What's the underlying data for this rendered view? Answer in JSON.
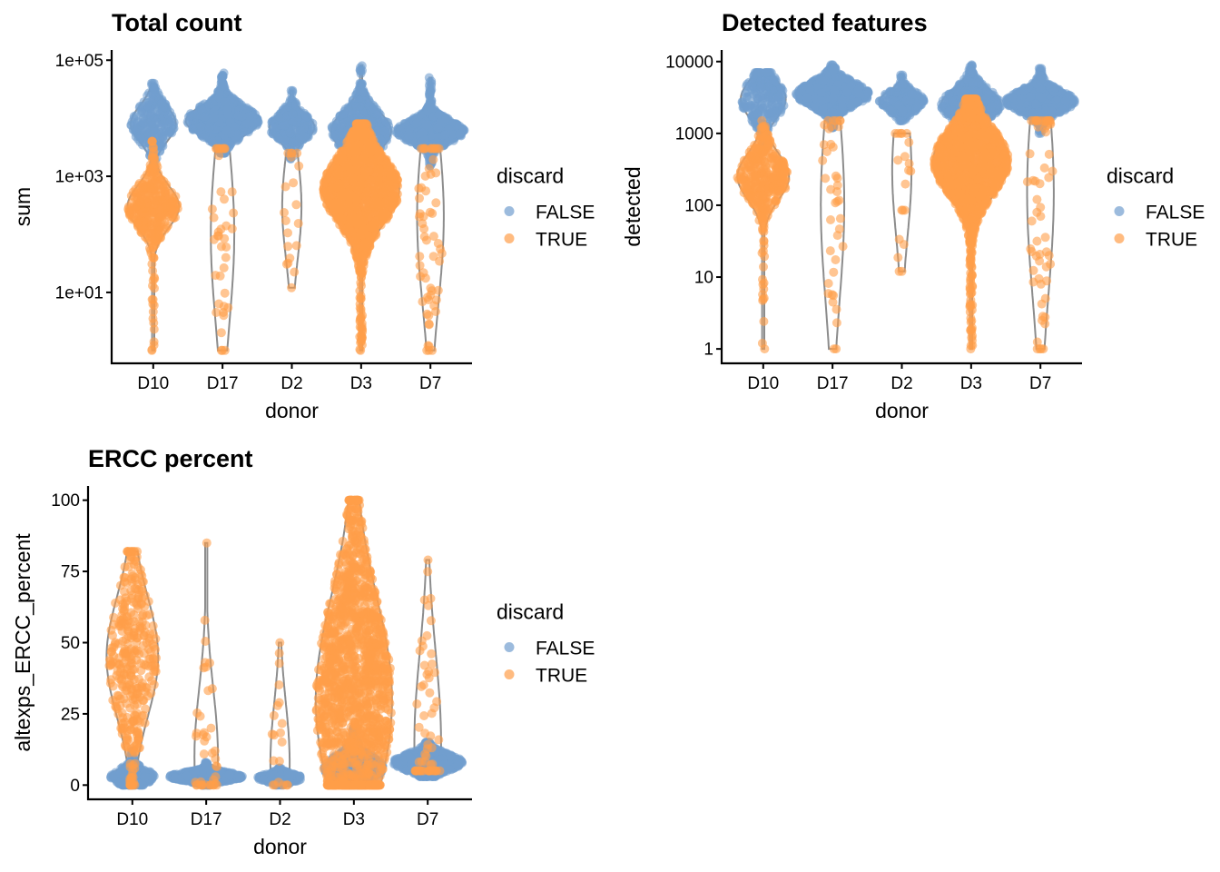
{
  "colors": {
    "FALSE": "#729ECE",
    "TRUE": "#FF9E4A",
    "violin": "#8c8c8c",
    "axis": "#000000"
  },
  "chart_data": [
    {
      "type": "violin-beeswarm",
      "title": "Total count",
      "xlabel": "donor",
      "ylabel": "sum",
      "yscale": "log10",
      "ylim": [
        0.6,
        150000
      ],
      "yticks": [
        10,
        1000,
        100000
      ],
      "ytick_labels": [
        "1e+01",
        "1e+03",
        "1e+05"
      ],
      "categories": [
        "D10",
        "D17",
        "D2",
        "D3",
        "D7"
      ],
      "legend": {
        "title": "discard",
        "entries": [
          "FALSE",
          "TRUE"
        ],
        "placement": "right"
      },
      "groups": {
        "D10": {
          "FALSE": {
            "median": 8000,
            "q1": 5000,
            "q3": 13000,
            "min": 1200,
            "max": 40000,
            "n": 250
          },
          "TRUE": {
            "median": 300,
            "q1": 180,
            "q3": 550,
            "min": 1,
            "max": 4000,
            "n": 350
          }
        },
        "D17": {
          "FALSE": {
            "median": 9000,
            "q1": 6000,
            "q3": 13000,
            "min": 2500,
            "max": 60000,
            "n": 800
          },
          "TRUE": {
            "median": 100,
            "q1": 10,
            "q3": 1000,
            "min": 1,
            "max": 3000,
            "n": 40
          }
        },
        "D2": {
          "FALSE": {
            "median": 7000,
            "q1": 5000,
            "q3": 10000,
            "min": 2000,
            "max": 30000,
            "n": 250
          },
          "TRUE": {
            "median": 300,
            "q1": 60,
            "q3": 1000,
            "min": 12,
            "max": 2500,
            "n": 20
          }
        },
        "D3": {
          "FALSE": {
            "median": 6000,
            "q1": 3500,
            "q3": 10000,
            "min": 1500,
            "max": 80000,
            "n": 500
          },
          "TRUE": {
            "median": 600,
            "q1": 250,
            "q3": 1500,
            "min": 1,
            "max": 8000,
            "n": 1500
          }
        },
        "D7": {
          "FALSE": {
            "median": 6000,
            "q1": 4500,
            "q3": 8000,
            "min": 1500,
            "max": 50000,
            "n": 700
          },
          "TRUE": {
            "median": 200,
            "q1": 10,
            "q3": 1000,
            "min": 1,
            "max": 3000,
            "n": 60
          }
        }
      }
    },
    {
      "type": "violin-beeswarm",
      "title": "Detected features",
      "xlabel": "donor",
      "ylabel": "detected",
      "yscale": "log10",
      "ylim": [
        0.63,
        14500
      ],
      "yticks": [
        1,
        10,
        100,
        1000,
        10000
      ],
      "ytick_labels": [
        "1",
        "10",
        "100",
        "1000",
        "10000"
      ],
      "categories": [
        "D10",
        "D17",
        "D2",
        "D3",
        "D7"
      ],
      "legend": {
        "title": "discard",
        "entries": [
          "FALSE",
          "TRUE"
        ],
        "placement": "right"
      },
      "groups": {
        "D10": {
          "FALSE": {
            "median": 3000,
            "q1": 2000,
            "q3": 4500,
            "min": 700,
            "max": 7000,
            "n": 250
          },
          "TRUE": {
            "median": 250,
            "q1": 150,
            "q3": 400,
            "min": 1,
            "max": 1500,
            "n": 350
          }
        },
        "D17": {
          "FALSE": {
            "median": 3500,
            "q1": 2700,
            "q3": 4500,
            "min": 1200,
            "max": 9000,
            "n": 800
          },
          "TRUE": {
            "median": 100,
            "q1": 10,
            "q3": 600,
            "min": 1,
            "max": 1500,
            "n": 40
          }
        },
        "D2": {
          "FALSE": {
            "median": 2800,
            "q1": 2300,
            "q3": 3500,
            "min": 1500,
            "max": 6500,
            "n": 250
          },
          "TRUE": {
            "median": 300,
            "q1": 50,
            "q3": 800,
            "min": 12,
            "max": 1000,
            "n": 20
          }
        },
        "D3": {
          "FALSE": {
            "median": 2500,
            "q1": 1800,
            "q3": 3500,
            "min": 1000,
            "max": 9000,
            "n": 500
          },
          "TRUE": {
            "median": 400,
            "q1": 200,
            "q3": 800,
            "min": 1,
            "max": 3000,
            "n": 1500
          }
        },
        "D7": {
          "FALSE": {
            "median": 2800,
            "q1": 2200,
            "q3": 3500,
            "min": 1000,
            "max": 8000,
            "n": 700
          },
          "TRUE": {
            "median": 150,
            "q1": 10,
            "q3": 800,
            "min": 1,
            "max": 1500,
            "n": 60
          }
        }
      }
    },
    {
      "type": "violin-beeswarm",
      "title": "ERCC percent",
      "xlabel": "donor",
      "ylabel": "altexps_ERCC_percent",
      "yscale": "linear",
      "ylim": [
        -5,
        105
      ],
      "yticks": [
        0,
        25,
        50,
        75,
        100
      ],
      "ytick_labels": [
        "0",
        "25",
        "50",
        "75",
        "100"
      ],
      "categories": [
        "D10",
        "D17",
        "D2",
        "D3",
        "D7"
      ],
      "legend": {
        "title": "discard",
        "entries": [
          "FALSE",
          "TRUE"
        ],
        "placement": "right"
      },
      "groups": {
        "D10": {
          "FALSE": {
            "median": 3,
            "q1": 1.5,
            "q3": 5,
            "min": 0,
            "max": 12,
            "n": 250
          },
          "TRUE": {
            "median": 45,
            "q1": 30,
            "q3": 58,
            "min": 0,
            "max": 82,
            "n": 350
          }
        },
        "D17": {
          "FALSE": {
            "median": 3,
            "q1": 2,
            "q3": 4,
            "min": 0,
            "max": 8,
            "n": 800
          },
          "TRUE": {
            "median": 10,
            "q1": 3,
            "q3": 35,
            "min": 0,
            "max": 85,
            "n": 40
          }
        },
        "D2": {
          "FALSE": {
            "median": 2.5,
            "q1": 1.5,
            "q3": 3.5,
            "min": 0,
            "max": 6,
            "n": 250
          },
          "TRUE": {
            "median": 8,
            "q1": 2,
            "q3": 30,
            "min": 0,
            "max": 50,
            "n": 20
          }
        },
        "D3": {
          "FALSE": {
            "median": 6,
            "q1": 3,
            "q3": 9,
            "min": 0,
            "max": 20,
            "n": 500
          },
          "TRUE": {
            "median": 30,
            "q1": 12,
            "q3": 60,
            "min": 0,
            "max": 100,
            "n": 1500
          }
        },
        "D7": {
          "FALSE": {
            "median": 8,
            "q1": 6,
            "q3": 10,
            "min": 3,
            "max": 15,
            "n": 700
          },
          "TRUE": {
            "median": 15,
            "q1": 8,
            "q3": 50,
            "min": 5,
            "max": 79,
            "n": 60
          }
        }
      }
    }
  ]
}
